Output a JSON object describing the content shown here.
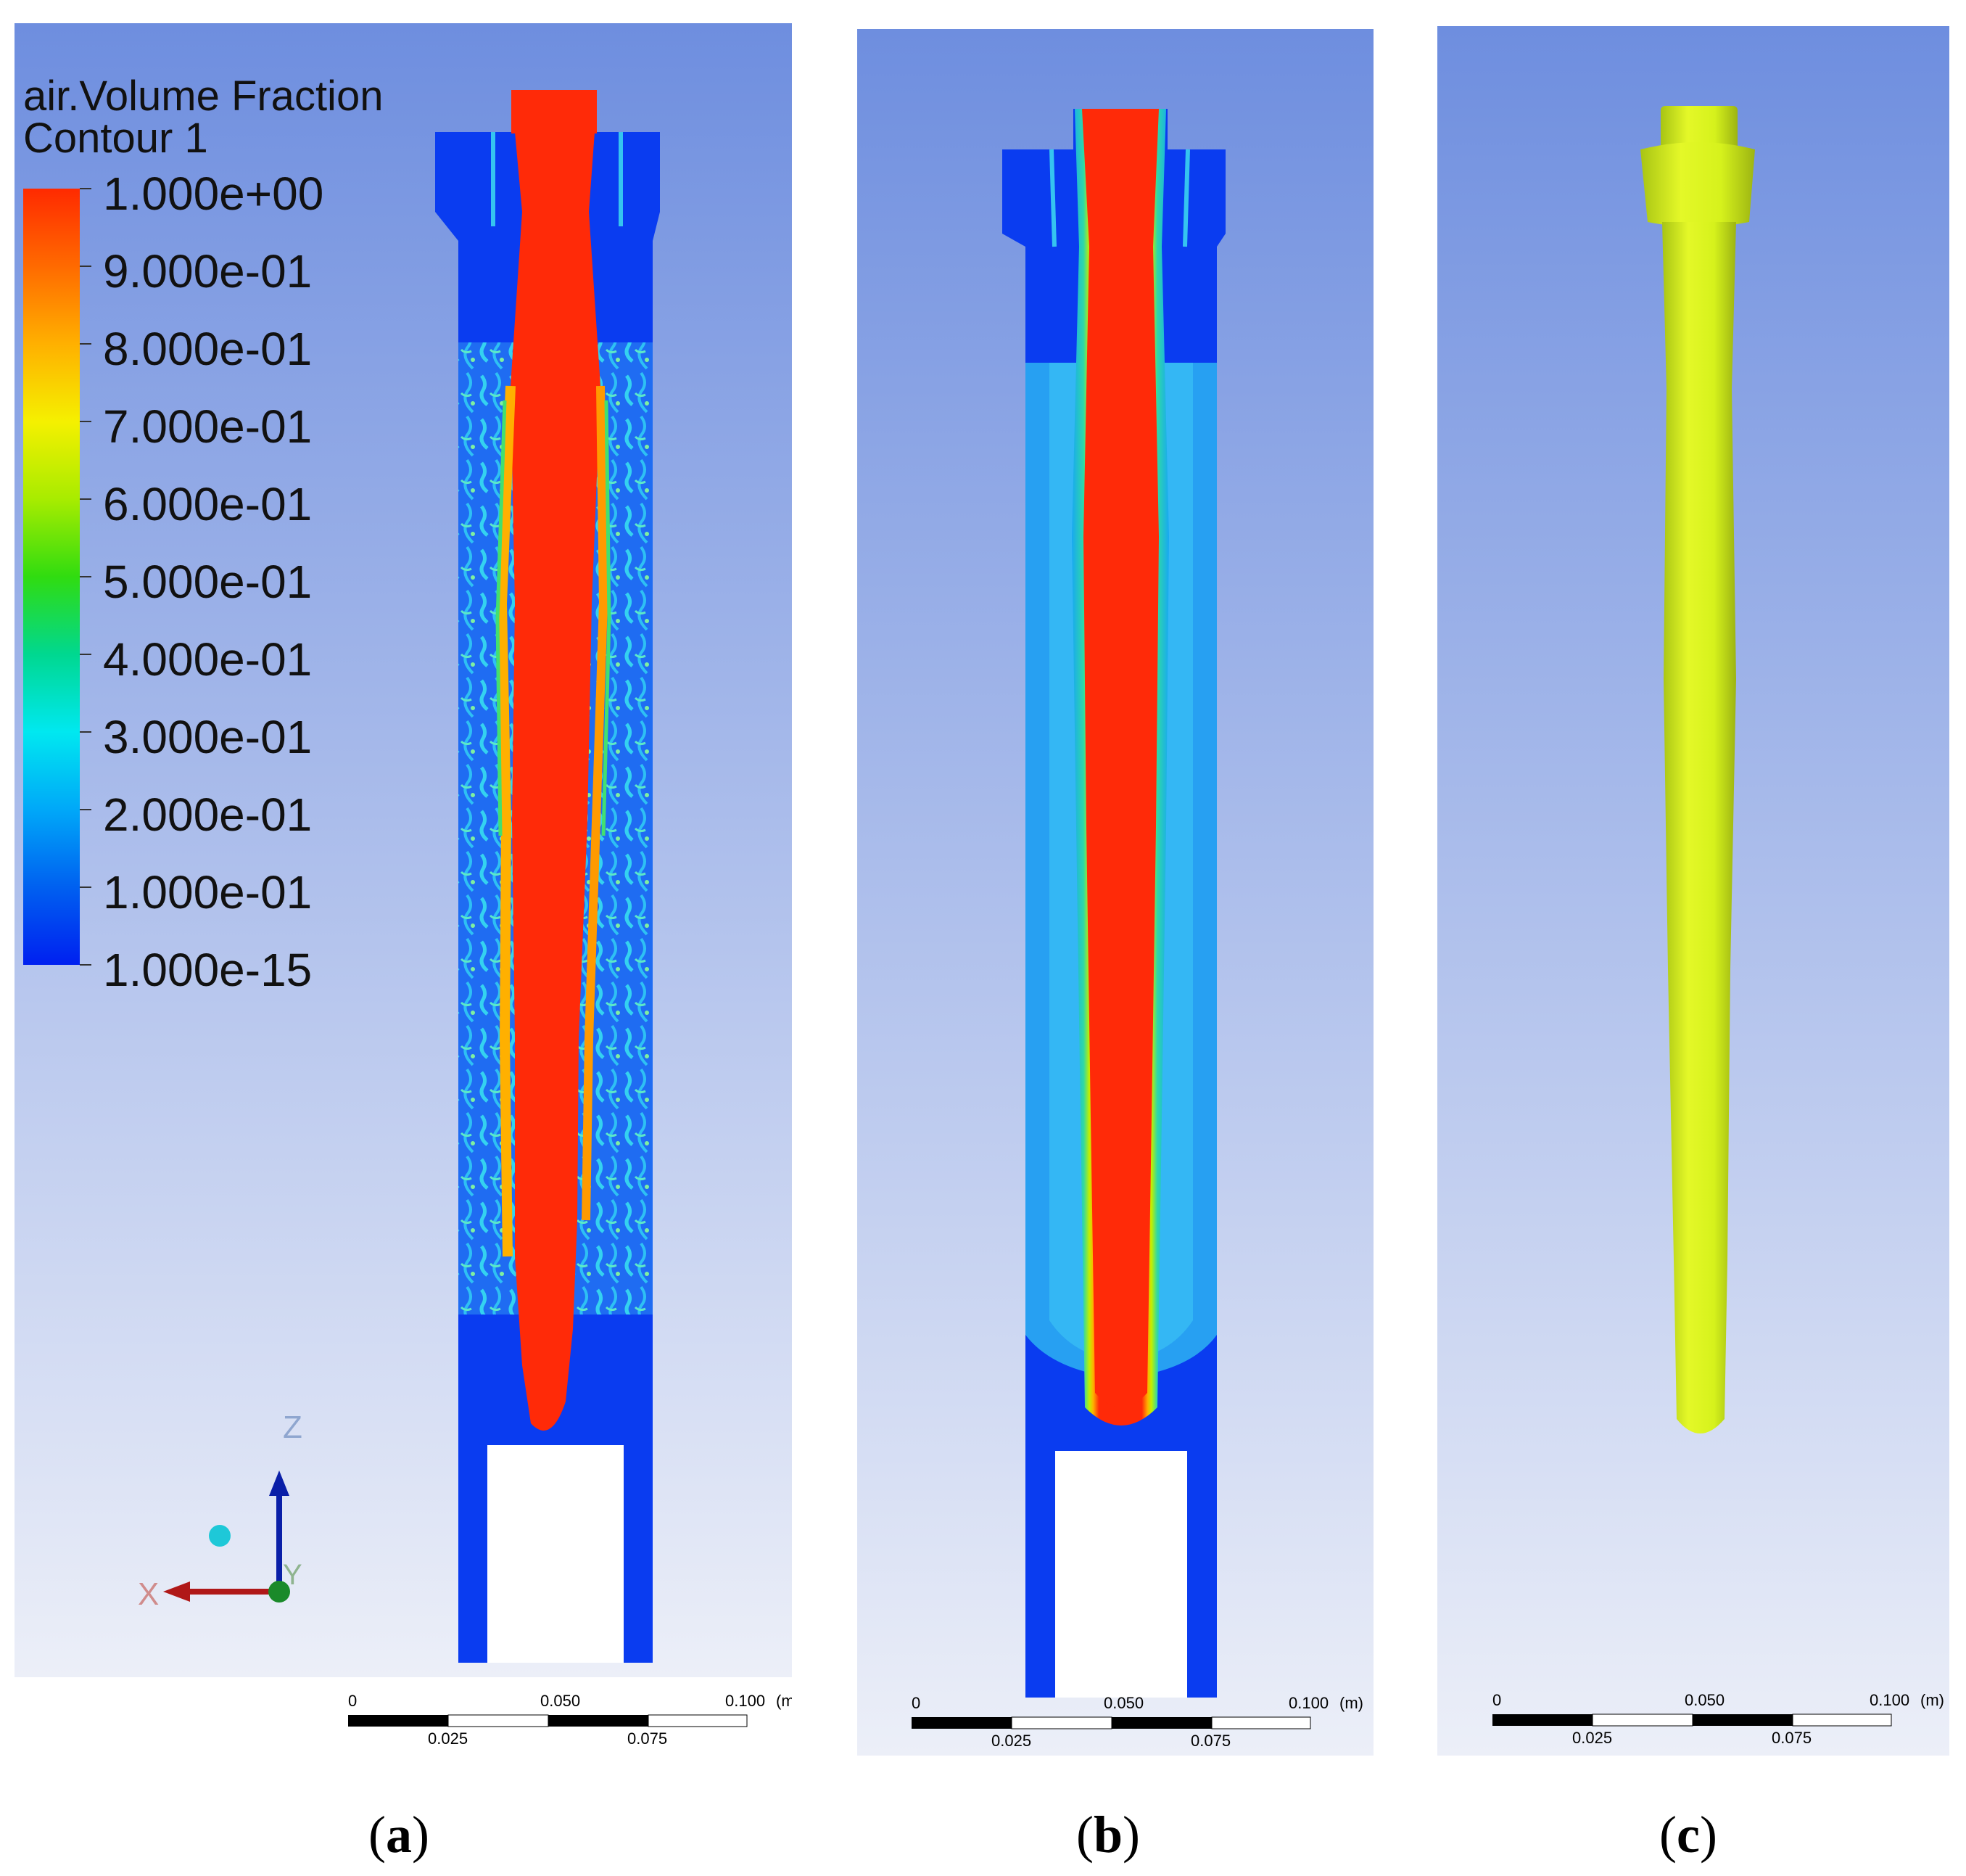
{
  "figure": {
    "panels": [
      {
        "caption_letter": "a",
        "caption_open": "(",
        "caption_close": ")"
      },
      {
        "caption_letter": "b",
        "caption_open": "(",
        "caption_close": ")"
      },
      {
        "caption_letter": "c",
        "caption_open": "(",
        "caption_close": ")"
      }
    ]
  },
  "legend": {
    "variable": "air.Volume Fraction",
    "name": "Contour 1",
    "levels": [
      "1.000e+00",
      "9.000e-01",
      "8.000e-01",
      "7.000e-01",
      "6.000e-01",
      "5.000e-01",
      "4.000e-01",
      "3.000e-01",
      "2.000e-01",
      "1.000e-01",
      "1.000e-15"
    ],
    "colors": [
      "#ff2a00",
      "#ff5a00",
      "#ff8c00",
      "#ffbf00",
      "#f2f200",
      "#c2f000",
      "#8ee800",
      "#4ee000",
      "#14d82a",
      "#00d878",
      "#00e4c8",
      "#00e8f0",
      "#00b8f8",
      "#0088f8",
      "#0050f0",
      "#0020f0"
    ]
  },
  "axes": {
    "z_label": "Z",
    "x_label": "X",
    "y_label": "Y"
  },
  "scale_bar": {
    "top_labels": [
      "0",
      "0.050",
      "0.100"
    ],
    "unit": "(m)",
    "bottom_labels": [
      "0.025",
      "0.075"
    ]
  },
  "colors": {
    "background_top": "#6e8edf",
    "background_bottom": "#e9edf8",
    "water": "#0a3cf0",
    "air": "#ff2a08",
    "mixed": "#23a7f0",
    "isosurface": "#d6f21c"
  }
}
